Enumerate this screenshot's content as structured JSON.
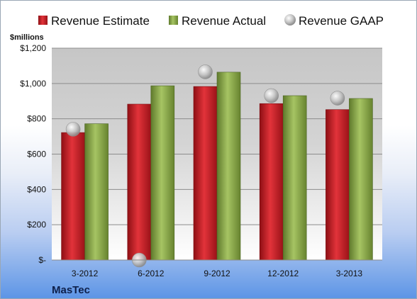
{
  "company": "MasTec",
  "chart_data": {
    "type": "bar",
    "y_unit_label": "$millions",
    "categories": [
      "3-2012",
      "6-2012",
      "9-2012",
      "12-2012",
      "3-2013"
    ],
    "series": [
      {
        "name": "Revenue Estimate",
        "kind": "bar",
        "color": "#cc1f27",
        "values": [
          722,
          883,
          983,
          886,
          852
        ]
      },
      {
        "name": "Revenue Actual",
        "kind": "bar",
        "color": "#8fae4c",
        "values": [
          772,
          987,
          1064,
          931,
          915
        ]
      },
      {
        "name": "Revenue GAAP",
        "kind": "marker",
        "color": "#b8b8b8",
        "values": [
          741,
          0,
          1066,
          931,
          917
        ]
      }
    ],
    "ylim": [
      0,
      1200
    ],
    "y_ticks": [
      0,
      200,
      400,
      600,
      800,
      1000,
      1200
    ],
    "y_tick_labels": [
      "$-",
      "$200",
      "$400",
      "$600",
      "$800",
      "$1,000",
      "$1,200"
    ],
    "grid": true,
    "legend_position": "top"
  }
}
